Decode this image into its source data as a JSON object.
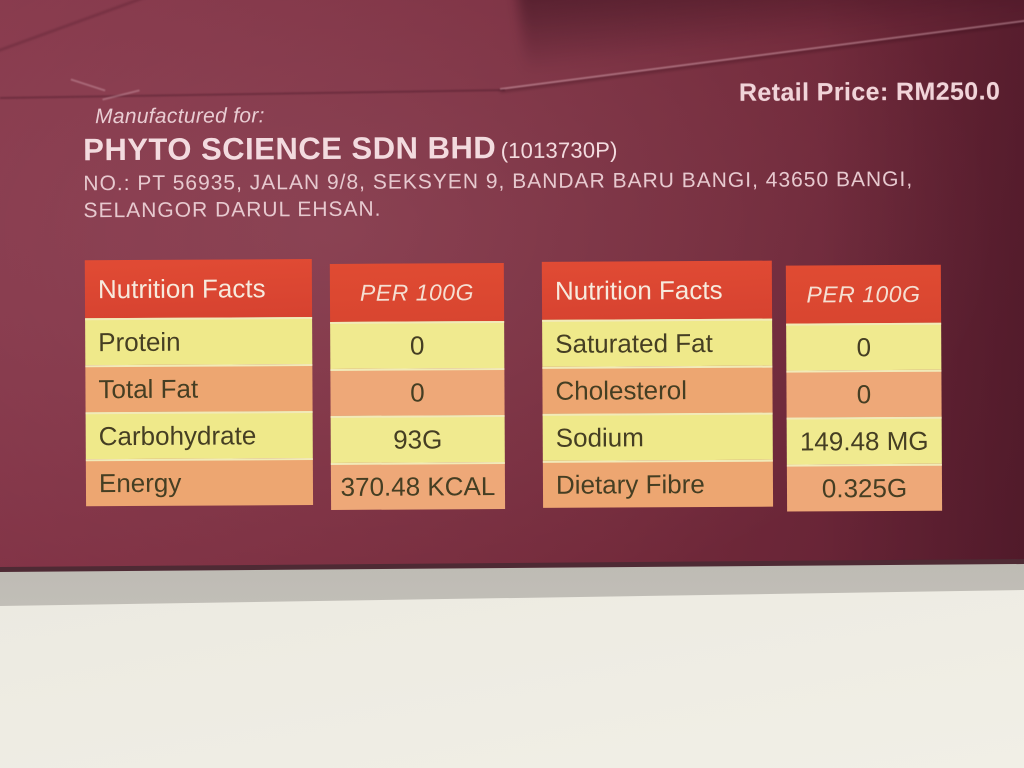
{
  "photo": {
    "retail_price": "Retail Price: RM250.0",
    "manufactured_for_label": "Manufactured for:",
    "company_name": "PHYTO SCIENCE SDN BHD",
    "company_registration": "(1013730P)",
    "address_line1": "NO.: PT 56935, JALAN 9/8, SEKSYEN 9, BANDAR BARU BANGI, 43650 BANGI,",
    "address_line2": "SELANGOR DARUL EHSAN."
  },
  "nutrition_tables": [
    {
      "title": "Nutrition Facts",
      "unit_header": "PER 100G",
      "rows": [
        {
          "label": "Protein",
          "value": "0"
        },
        {
          "label": "Total Fat",
          "value": "0"
        },
        {
          "label": "Carbohydrate",
          "value": "93G"
        },
        {
          "label": "Energy",
          "value": "370.48 KCAL"
        }
      ]
    },
    {
      "title": "Nutrition Facts",
      "unit_header": "PER 100G",
      "rows": [
        {
          "label": "Saturated Fat",
          "value": "0"
        },
        {
          "label": "Cholesterol",
          "value": "0"
        },
        {
          "label": "Sodium",
          "value": "149.48 MG"
        },
        {
          "label": "Dietary Fibre",
          "value": "0.325G"
        }
      ]
    }
  ],
  "colors": {
    "package_maroon": "#7a2e3f",
    "flap_shadow": "#5c2230",
    "table_header_red": "#dc4833",
    "row_yellow": "#efe98a",
    "row_orange": "#eda671",
    "row_text_dark": "#453e23",
    "package_text_light": "#ecd0d5",
    "surface_cream": "#ebe9e0",
    "surface_shadow_gray": "#aeaba4"
  }
}
